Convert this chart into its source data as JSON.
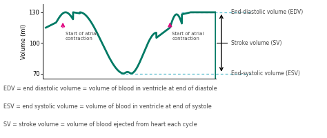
{
  "ylim": [
    65,
    138
  ],
  "yticks": [
    70,
    100,
    130
  ],
  "curve_color": "#007a65",
  "curve_linewidth": 2.0,
  "edv_value": 130,
  "esv_value": 70,
  "arrow_color": "#e0007f",
  "annotation_color": "#444444",
  "dashed_color": "#55bbcc",
  "ylabel": "Volume (ml)",
  "legend_edv": "End-diastolic volume (EDV)",
  "legend_esv": "End-systolic volume (ESV)",
  "legend_sv": "Stroke volume (SV)",
  "label1": "Start of atrial\ncontraction",
  "label2": "Start of atrial\ncontraction",
  "text_edv": "EDV = end diastolic volume = volume of blood in ventricle at end of diastole",
  "text_esv": "ESV = end systolic volume = volume of blood in ventricle at end of systole",
  "text_sv": "SV = stroke volume = volume of blood ejected from heart each cycle",
  "bg_color": "#ffffff"
}
